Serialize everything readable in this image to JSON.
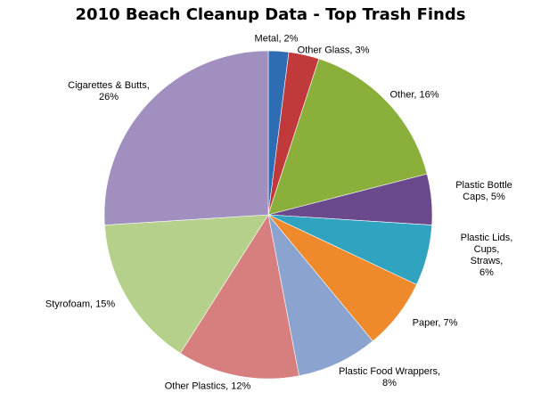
{
  "chart_data": {
    "type": "pie",
    "title": "2010 Beach Cleanup Data - Top Trash Finds",
    "values": [
      2,
      3,
      16,
      5,
      6,
      7,
      8,
      12,
      15,
      26
    ],
    "value_labels": [
      "Metal, 2%",
      "Other Glass, 3%",
      "Other, 16%",
      "Plastic Bottle Caps, 5%",
      "Plastic Lids, Cups,\nStraws,\n6%",
      "Paper, 7%",
      "Plastic Food Wrappers,\n8%",
      "Other Plastics, 12%",
      "Styrofoam, 15%",
      "Cigarettes & Butts,\n26%"
    ],
    "colors": [
      "#2e6db4",
      "#c0393b",
      "#8ab03b",
      "#6a4a8c",
      "#2fa3c0",
      "#ef8a2c",
      "#8aa4cf",
      "#d67f7e",
      "#b5d08a",
      "#a08fbf"
    ]
  }
}
